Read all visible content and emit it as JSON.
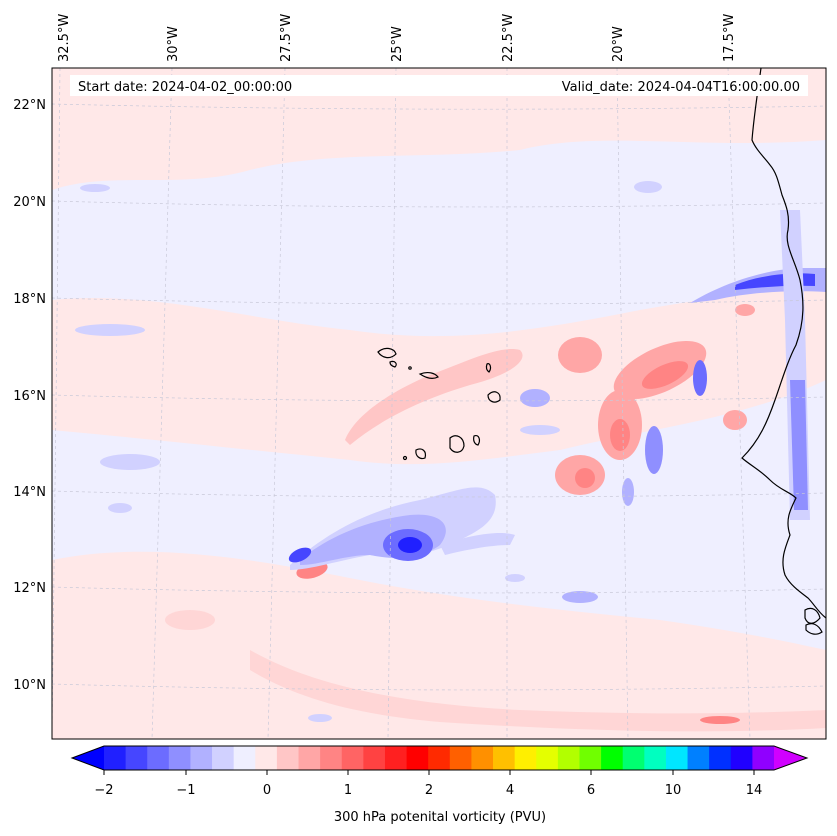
{
  "header": {
    "start_date": "Start date: 2024-04-02_00:00:00",
    "valid_date": "Valid_date: 2024-04-04T16:00:00.00"
  },
  "map": {
    "variable": "300 hPa potential vorticity",
    "lon_labels": [
      "32.5°W",
      "30°W",
      "27.5°W",
      "25°W",
      "22.5°W",
      "20°W",
      "17.5°W"
    ],
    "lat_labels": [
      "22°N",
      "20°N",
      "18°N",
      "16°N",
      "14°N",
      "12°N",
      "10°N"
    ]
  },
  "colorbar": {
    "label": "300 hPa potenital vorticity (PVU)",
    "ticks": [
      "−2",
      "−1",
      "0",
      "1",
      "2",
      "4",
      "6",
      "10",
      "14"
    ],
    "colors": [
      "#0000ff",
      "#2020ff",
      "#4646ff",
      "#6c6cff",
      "#8f8fff",
      "#b1b1ff",
      "#d1d1ff",
      "#efefff",
      "#ffe8e8",
      "#ffc6c6",
      "#ffa6a6",
      "#ff8484",
      "#ff6464",
      "#ff4242",
      "#ff2020",
      "#ff0000",
      "#ff2a00",
      "#ff6000",
      "#ff9000",
      "#ffc000",
      "#ffef00",
      "#e4ff00",
      "#b2ff00",
      "#70ff00",
      "#00ff00",
      "#00ff70",
      "#00ffc0",
      "#00e6ff",
      "#0080ff",
      "#0030ff",
      "#2000ff",
      "#9000ff",
      "#d000ff"
    ]
  }
}
